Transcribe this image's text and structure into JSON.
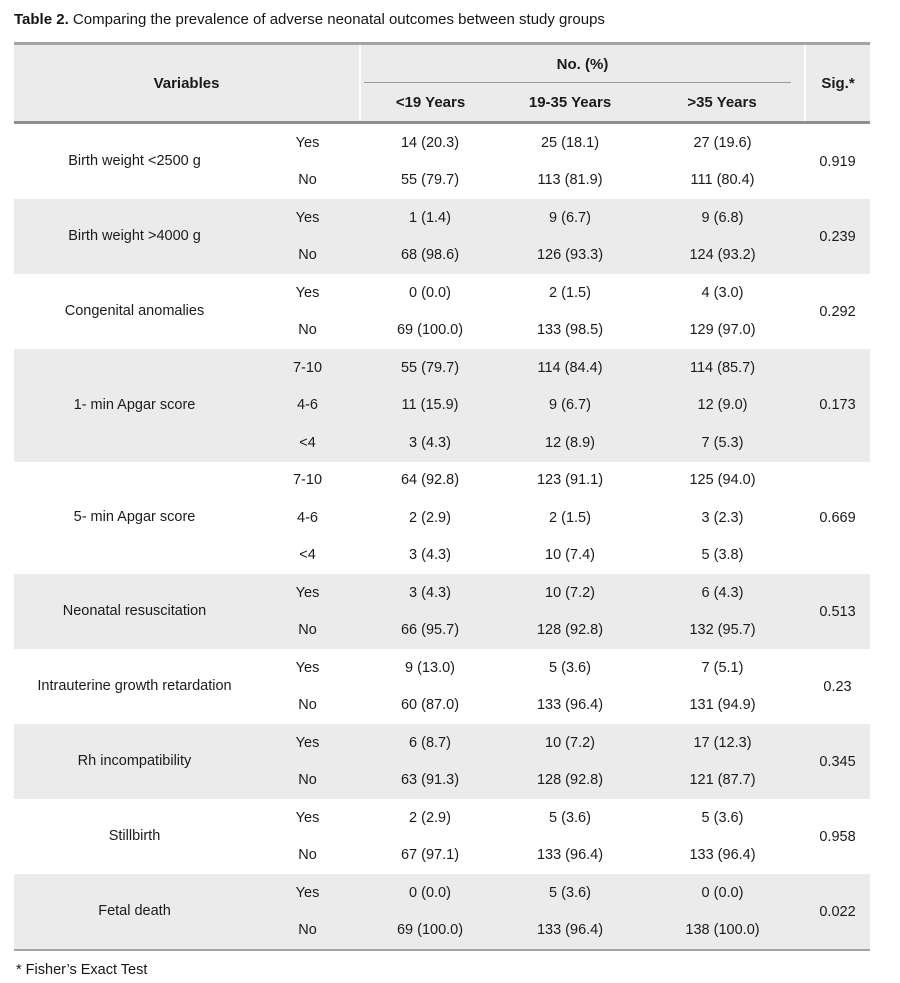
{
  "caption": {
    "label": "Table 2.",
    "text": " Comparing the prevalence of adverse neonatal outcomes between study groups"
  },
  "header": {
    "variables": "Variables",
    "group_header": "No. (%)",
    "columns": [
      "<19 Years",
      "19-35 Years",
      ">35 Years"
    ],
    "sig": "Sig.*"
  },
  "groups": [
    {
      "variable": "Birth weight <2500 g",
      "sig": "0.919",
      "rows": [
        {
          "label": "Yes",
          "values": [
            "14 (20.3)",
            "25 (18.1)",
            "27 (19.6)"
          ]
        },
        {
          "label": "No",
          "values": [
            "55 (79.7)",
            "113 (81.9)",
            "111 (80.4)"
          ]
        }
      ]
    },
    {
      "variable": "Birth weight >4000 g",
      "sig": "0.239",
      "rows": [
        {
          "label": "Yes",
          "values": [
            "1 (1.4)",
            "9 (6.7)",
            "9 (6.8)"
          ]
        },
        {
          "label": "No",
          "values": [
            "68 (98.6)",
            "126 (93.3)",
            "124 (93.2)"
          ]
        }
      ]
    },
    {
      "variable": "Congenital anomalies",
      "sig": "0.292",
      "rows": [
        {
          "label": "Yes",
          "values": [
            "0 (0.0)",
            "2 (1.5)",
            "4 (3.0)"
          ]
        },
        {
          "label": "No",
          "values": [
            "69 (100.0)",
            "133 (98.5)",
            "129 (97.0)"
          ]
        }
      ]
    },
    {
      "variable": "1- min Apgar score",
      "sig": "0.173",
      "rows": [
        {
          "label": "7-10",
          "values": [
            "55 (79.7)",
            "114 (84.4)",
            "114 (85.7)"
          ]
        },
        {
          "label": "4-6",
          "values": [
            "11 (15.9)",
            "9 (6.7)",
            "12 (9.0)"
          ]
        },
        {
          "label": "<4",
          "values": [
            "3 (4.3)",
            "12 (8.9)",
            "7 (5.3)"
          ]
        }
      ]
    },
    {
      "variable": "5- min Apgar score",
      "sig": "0.669",
      "rows": [
        {
          "label": "7-10",
          "values": [
            "64 (92.8)",
            "123 (91.1)",
            "125 (94.0)"
          ]
        },
        {
          "label": "4-6",
          "values": [
            "2 (2.9)",
            "2 (1.5)",
            "3 (2.3)"
          ]
        },
        {
          "label": "<4",
          "values": [
            "3 (4.3)",
            "10 (7.4)",
            "5 (3.8)"
          ]
        }
      ]
    },
    {
      "variable": "Neonatal resuscitation",
      "sig": "0.513",
      "rows": [
        {
          "label": "Yes",
          "values": [
            "3 (4.3)",
            "10 (7.2)",
            "6 (4.3)"
          ]
        },
        {
          "label": "No",
          "values": [
            "66 (95.7)",
            "128 (92.8)",
            "132 (95.7)"
          ]
        }
      ]
    },
    {
      "variable": "Intrauterine growth retardation",
      "sig": "0.23",
      "rows": [
        {
          "label": "Yes",
          "values": [
            "9 (13.0)",
            "5 (3.6)",
            "7 (5.1)"
          ]
        },
        {
          "label": "No",
          "values": [
            "60 (87.0)",
            "133 (96.4)",
            "131 (94.9)"
          ]
        }
      ]
    },
    {
      "variable": "Rh incompatibility",
      "sig": "0.345",
      "rows": [
        {
          "label": "Yes",
          "values": [
            "6 (8.7)",
            "10 (7.2)",
            "17 (12.3)"
          ]
        },
        {
          "label": "No",
          "values": [
            "63 (91.3)",
            "128 (92.8)",
            "121 (87.7)"
          ]
        }
      ]
    },
    {
      "variable": "Stillbirth",
      "sig": "0.958",
      "rows": [
        {
          "label": "Yes",
          "values": [
            "2 (2.9)",
            "5 (3.6)",
            "5 (3.6)"
          ]
        },
        {
          "label": "No",
          "values": [
            "67 (97.1)",
            "133 (96.4)",
            "133 (96.4)"
          ]
        }
      ]
    },
    {
      "variable": "Fetal death",
      "sig": "0.022",
      "rows": [
        {
          "label": "Yes",
          "values": [
            "0 (0.0)",
            "5 (3.6)",
            "0 (0.0)"
          ]
        },
        {
          "label": "No",
          "values": [
            "69 (100.0)",
            "133 (96.4)",
            "138 (100.0)"
          ]
        }
      ]
    }
  ],
  "footnote": "* Fisher’s Exact Test",
  "colors": {
    "shaded_row_bg": "#ebebec",
    "header_bg": "#ebebec",
    "rule_gray": "#9a9a9c",
    "text": "#1b1b1b"
  }
}
